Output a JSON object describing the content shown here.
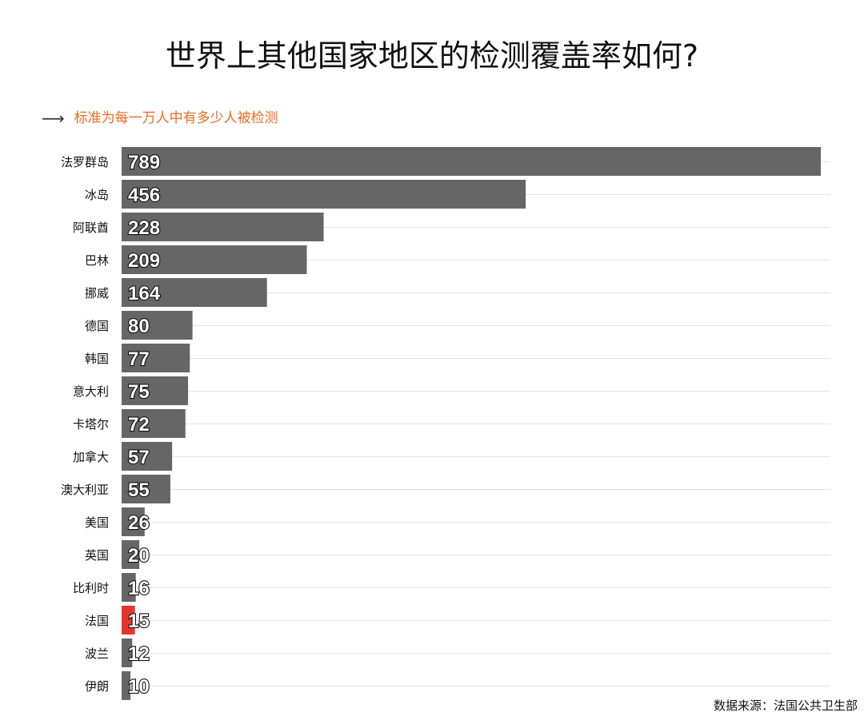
{
  "title": "世界上其他国家地区的检测覆盖率如何?",
  "subtitle": {
    "arrow_icon": "long-right-arrow",
    "text": "标准为每一万人中有多少人被检测"
  },
  "source": "数据来源：法国公共卫生部",
  "colors": {
    "bar": "#666666",
    "highlight": "#e8332a",
    "subtitle": "#ec6b1e",
    "gridline": "#e3e3e3",
    "label_stroke": "#111111"
  },
  "chart_data": {
    "type": "bar",
    "orientation": "horizontal",
    "categories": [
      "法罗群岛",
      "冰岛",
      "阿联酋",
      "巴林",
      "挪威",
      "德国",
      "韩国",
      "意大利",
      "卡塔尔",
      "加拿大",
      "澳大利亚",
      "美国",
      "英国",
      "比利时",
      "法国",
      "波兰",
      "伊朗"
    ],
    "values": [
      789,
      456,
      228,
      209,
      164,
      80,
      77,
      75,
      72,
      57,
      55,
      26,
      20,
      16,
      15,
      12,
      10
    ],
    "highlight": [
      "法国"
    ],
    "xlim": [
      0,
      789
    ],
    "grid": true,
    "legend": "none"
  }
}
